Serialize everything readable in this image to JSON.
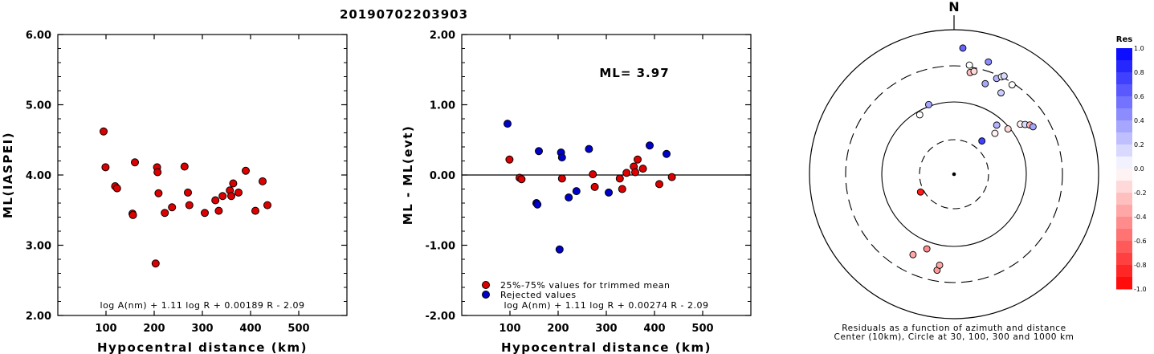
{
  "event_id": "20190702203903",
  "chart_data": [
    {
      "type": "scatter",
      "ylabel": "ML(IASPEI)",
      "xlabel": "Hypocentral distance (km)",
      "xlim": [
        0,
        600
      ],
      "ylim": [
        2.0,
        6.0
      ],
      "x_ticks": [
        "100",
        "200",
        "300",
        "400",
        "500"
      ],
      "y_ticks": [
        "2.00",
        "3.00",
        "4.00",
        "5.00",
        "6.00"
      ],
      "formula": "log A(nm) + 1.11 log R + 0.00189 R - 2.09",
      "point_color": "#dd0000",
      "points": [
        [
          95,
          4.62
        ],
        [
          99,
          4.11
        ],
        [
          119,
          3.84
        ],
        [
          123,
          3.81
        ],
        [
          155,
          3.45
        ],
        [
          156,
          3.43
        ],
        [
          160,
          4.18
        ],
        [
          203,
          2.74
        ],
        [
          206,
          4.11
        ],
        [
          207,
          4.04
        ],
        [
          209,
          3.74
        ],
        [
          222,
          3.46
        ],
        [
          237,
          3.54
        ],
        [
          263,
          4.12
        ],
        [
          270,
          3.75
        ],
        [
          273,
          3.57
        ],
        [
          305,
          3.46
        ],
        [
          327,
          3.64
        ],
        [
          334,
          3.49
        ],
        [
          342,
          3.7
        ],
        [
          357,
          3.78
        ],
        [
          360,
          3.7
        ],
        [
          364,
          3.88
        ],
        [
          375,
          3.75
        ],
        [
          390,
          4.06
        ],
        [
          410,
          3.49
        ],
        [
          425,
          3.91
        ],
        [
          435,
          3.57
        ]
      ]
    },
    {
      "type": "scatter",
      "ylabel": "ML - ML(evt)",
      "xlabel": "Hypocentral distance (km)",
      "xlim": [
        0,
        600
      ],
      "ylim": [
        -2.0,
        2.0
      ],
      "x_ticks": [
        "100",
        "200",
        "300",
        "400",
        "500"
      ],
      "y_ticks": [
        "-2.00",
        "-1.00",
        "0.00",
        "1.00",
        "2.00"
      ],
      "ml_label": "ML= 3.97",
      "formula": "log A(nm) + 1.11 log R + 0.00274 R - 2.09",
      "legend": [
        "25%-75% values for trimmed mean",
        "Rejected values"
      ],
      "legend_colors": [
        "#dd0000",
        "#0000cc"
      ],
      "series": [
        {
          "name": "25%-75% values for trimmed mean",
          "points": [
            [
              99,
              0.22
            ],
            [
              120,
              -0.04
            ],
            [
              124,
              -0.06
            ],
            [
              208,
              -0.05
            ],
            [
              272,
              0.01
            ],
            [
              276,
              -0.17
            ],
            [
              328,
              -0.05
            ],
            [
              333,
              -0.2
            ],
            [
              342,
              0.03
            ],
            [
              357,
              0.12
            ],
            [
              360,
              0.04
            ],
            [
              365,
              0.22
            ],
            [
              376,
              0.09
            ],
            [
              410,
              -0.13
            ],
            [
              436,
              -0.03
            ]
          ]
        },
        {
          "name": "Rejected values",
          "points": [
            [
              95,
              0.73
            ],
            [
              155,
              -0.4
            ],
            [
              157,
              -0.42
            ],
            [
              160,
              0.34
            ],
            [
              203,
              -1.06
            ],
            [
              206,
              0.32
            ],
            [
              208,
              0.25
            ],
            [
              222,
              -0.32
            ],
            [
              238,
              -0.23
            ],
            [
              264,
              0.37
            ],
            [
              305,
              -0.25
            ],
            [
              390,
              0.42
            ],
            [
              425,
              0.3
            ]
          ]
        }
      ]
    },
    {
      "type": "scatter",
      "north_label": "N",
      "caption_line1": "Residuals as a function of azimuth and distance",
      "caption_line2": "Center (10km), Circle at 30, 100, 300 and 1000 km",
      "colorbar_title": "Res",
      "colorbar_labels": [
        "1.0",
        "0.8",
        "0.6",
        "0.4",
        "0.2",
        "0.0",
        "-0.2",
        "-0.4",
        "-0.6",
        "-0.8",
        "-1.0"
      ],
      "stations": [
        {
          "azimuth": 4,
          "distance": 350,
          "res": 0.6
        },
        {
          "azimuth": 8,
          "distance": 305,
          "res": 0.0
        },
        {
          "azimuth": 9,
          "distance": 285,
          "res": -0.25
        },
        {
          "azimuth": 11,
          "distance": 290,
          "res": -0.15
        },
        {
          "azimuth": 17,
          "distance": 325,
          "res": 0.45
        },
        {
          "azimuth": 19,
          "distance": 265,
          "res": 0.35
        },
        {
          "azimuth": 24,
          "distance": 290,
          "res": 0.3
        },
        {
          "azimuth": 26,
          "distance": 300,
          "res": 0.0
        },
        {
          "azimuth": 27,
          "distance": 305,
          "res": 0.15
        },
        {
          "azimuth": 30,
          "distance": 260,
          "res": 0.2
        },
        {
          "azimuth": 33,
          "distance": 295,
          "res": 0.0
        },
        {
          "azimuth": 40,
          "distance": 120,
          "res": 0.75
        },
        {
          "azimuth": 41,
          "distance": 180,
          "res": 0.3
        },
        {
          "azimuth": 45,
          "distance": 160,
          "res": -0.05
        },
        {
          "azimuth": 50,
          "distance": 195,
          "res": -0.15
        },
        {
          "azimuth": 53,
          "distance": 230,
          "res": -0.05
        },
        {
          "azimuth": 55,
          "distance": 240,
          "res": 0.15
        },
        {
          "azimuth": 57,
          "distance": 250,
          "res": -0.3
        },
        {
          "azimuth": 59,
          "distance": 255,
          "res": 0.35
        },
        {
          "azimuth": 340,
          "distance": 205,
          "res": 0.35
        },
        {
          "azimuth": 330,
          "distance": 190,
          "res": 0.0
        },
        {
          "azimuth": 242,
          "distance": 105,
          "res": -0.9
        },
        {
          "azimuth": 207,
          "distance": 250,
          "res": -0.35
        },
        {
          "azimuth": 200,
          "distance": 220,
          "res": -0.45
        },
        {
          "azimuth": 190,
          "distance": 270,
          "res": -0.4
        },
        {
          "azimuth": 189,
          "distance": 255,
          "res": -0.35
        }
      ]
    }
  ]
}
